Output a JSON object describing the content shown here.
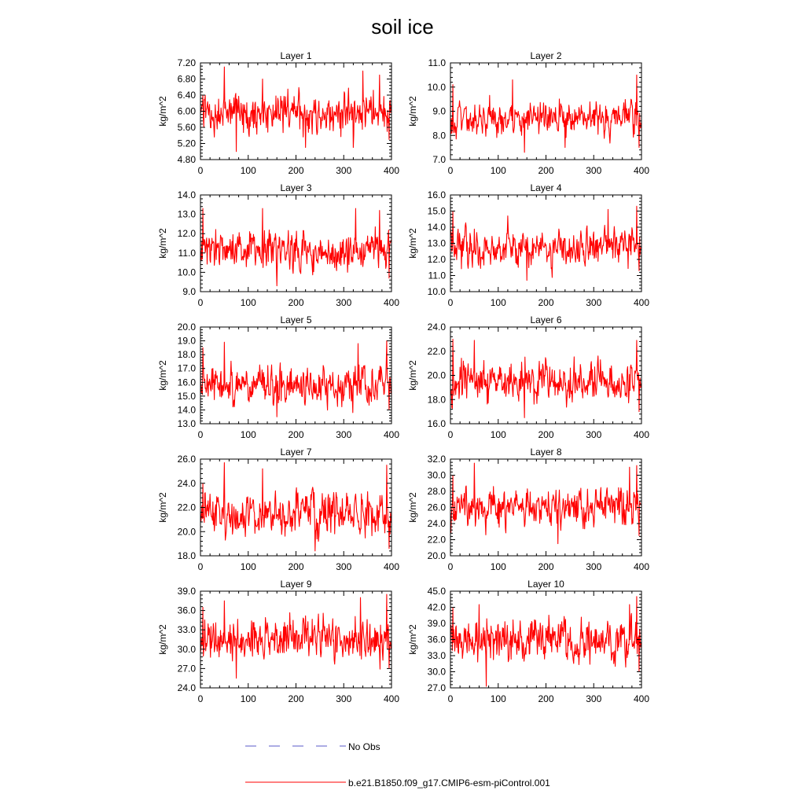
{
  "figure": {
    "title": "soil ice"
  },
  "legend": {
    "obs_label": "No Obs",
    "obs_color": "#5a5ac8",
    "model_label": "b.e21.B1850.f09_g17.CMIP6-esm-piControl.001",
    "model_color": "#ff0000"
  },
  "chart_data": [
    {
      "type": "line",
      "title": "Layer 1",
      "ylabel": "kg/m^2",
      "xlim": [
        0,
        400
      ],
      "ylim": [
        4.8,
        7.2
      ],
      "xticks": [
        "0",
        "100",
        "200",
        "300",
        "400"
      ],
      "yticks": [
        "4.80",
        "5.20",
        "5.60",
        "6.00",
        "6.40",
        "6.80",
        "7.20"
      ],
      "series": [
        {
          "color": "#ff0000",
          "mean": 5.95,
          "amp": 0.35,
          "min": 5.0,
          "max": 7.1,
          "n": 400,
          "x": [
            5,
            50,
            75,
            130,
            220,
            320,
            340,
            375,
            395
          ],
          "y": [
            6.4,
            7.1,
            5.0,
            6.8,
            5.1,
            5.1,
            7.0,
            6.9,
            5.3
          ]
        }
      ]
    },
    {
      "type": "line",
      "title": "Layer 2",
      "ylabel": "kg/m^2",
      "xlim": [
        0,
        400
      ],
      "ylim": [
        7.0,
        11.0
      ],
      "xticks": [
        "0",
        "100",
        "200",
        "300",
        "400"
      ],
      "yticks": [
        "7.0",
        "8.0",
        "9.0",
        "10.0",
        "11.0"
      ],
      "series": [
        {
          "color": "#ff0000",
          "mean": 8.7,
          "amp": 0.5,
          "min": 7.3,
          "max": 10.5,
          "n": 400,
          "x": [
            5,
            130,
            155,
            240,
            390,
            395
          ],
          "y": [
            10.1,
            10.3,
            7.3,
            7.5,
            10.5,
            7.5
          ]
        }
      ]
    },
    {
      "type": "line",
      "title": "Layer 3",
      "ylabel": "kg/m^2",
      "xlim": [
        0,
        400
      ],
      "ylim": [
        9.0,
        14.0
      ],
      "xticks": [
        "0",
        "100",
        "200",
        "300",
        "400"
      ],
      "yticks": [
        "9.0",
        "10.0",
        "11.0",
        "12.0",
        "13.0",
        "14.0"
      ],
      "series": [
        {
          "color": "#ff0000",
          "mean": 11.1,
          "amp": 0.7,
          "min": 9.3,
          "max": 13.3,
          "n": 400,
          "x": [
            5,
            130,
            160,
            325,
            375,
            395
          ],
          "y": [
            13.3,
            13.3,
            9.3,
            13.3,
            13.2,
            9.7
          ]
        }
      ]
    },
    {
      "type": "line",
      "title": "Layer 4",
      "ylabel": "kg/m^2",
      "xlim": [
        0,
        400
      ],
      "ylim": [
        10.0,
        16.0
      ],
      "xticks": [
        "0",
        "100",
        "200",
        "300",
        "400"
      ],
      "yticks": [
        "10.0",
        "11.0",
        "12.0",
        "13.0",
        "14.0",
        "15.0",
        "16.0"
      ],
      "series": [
        {
          "color": "#ff0000",
          "mean": 12.8,
          "amp": 0.8,
          "min": 10.7,
          "max": 15.3,
          "n": 400,
          "x": [
            5,
            120,
            160,
            330,
            390,
            395
          ],
          "y": [
            15.0,
            14.7,
            10.7,
            15.1,
            15.3,
            11.3
          ]
        }
      ]
    },
    {
      "type": "line",
      "title": "Layer 5",
      "ylabel": "kg/m^2",
      "xlim": [
        0,
        400
      ],
      "ylim": [
        13.0,
        20.0
      ],
      "xticks": [
        "0",
        "100",
        "200",
        "300",
        "400"
      ],
      "yticks": [
        "13.0",
        "14.0",
        "15.0",
        "16.0",
        "17.0",
        "18.0",
        "19.0",
        "20.0"
      ],
      "series": [
        {
          "color": "#ff0000",
          "mean": 15.8,
          "amp": 1.0,
          "min": 13.5,
          "max": 19.0,
          "n": 400,
          "x": [
            5,
            50,
            160,
            330,
            390,
            395
          ],
          "y": [
            18.5,
            18.9,
            13.5,
            18.8,
            19.0,
            14.0
          ]
        }
      ]
    },
    {
      "type": "line",
      "title": "Layer 6",
      "ylabel": "kg/m^2",
      "xlim": [
        0,
        400
      ],
      "ylim": [
        16.0,
        24.0
      ],
      "xticks": [
        "0",
        "100",
        "200",
        "300",
        "400"
      ],
      "yticks": [
        "16.0",
        "18.0",
        "20.0",
        "22.0",
        "24.0"
      ],
      "series": [
        {
          "color": "#ff0000",
          "mean": 19.5,
          "amp": 1.2,
          "min": 16.5,
          "max": 23.0,
          "n": 400,
          "x": [
            5,
            50,
            155,
            390,
            395
          ],
          "y": [
            23.0,
            22.9,
            16.5,
            22.9,
            17.0
          ]
        }
      ]
    },
    {
      "type": "line",
      "title": "Layer 7",
      "ylabel": "kg/m^2",
      "xlim": [
        0,
        400
      ],
      "ylim": [
        18.0,
        26.0
      ],
      "xticks": [
        "0",
        "100",
        "200",
        "300",
        "400"
      ],
      "yticks": [
        "18.0",
        "20.0",
        "22.0",
        "24.0",
        "26.0"
      ],
      "series": [
        {
          "color": "#ff0000",
          "mean": 21.5,
          "amp": 1.3,
          "min": 18.4,
          "max": 25.7,
          "n": 400,
          "x": [
            5,
            50,
            130,
            240,
            390,
            395
          ],
          "y": [
            24.0,
            25.7,
            25.2,
            18.4,
            25.5,
            18.6
          ]
        }
      ]
    },
    {
      "type": "line",
      "title": "Layer 8",
      "ylabel": "kg/m^2",
      "xlim": [
        0,
        400
      ],
      "ylim": [
        20.0,
        32.0
      ],
      "xticks": [
        "0",
        "100",
        "200",
        "300",
        "400"
      ],
      "yticks": [
        "20.0",
        "22.0",
        "24.0",
        "26.0",
        "28.0",
        "30.0",
        "32.0"
      ],
      "series": [
        {
          "color": "#ff0000",
          "mean": 26.0,
          "amp": 1.7,
          "min": 21.5,
          "max": 31.5,
          "n": 400,
          "x": [
            5,
            50,
            225,
            375,
            390,
            395
          ],
          "y": [
            30.0,
            31.5,
            21.5,
            31.0,
            31.2,
            22.5
          ]
        }
      ]
    },
    {
      "type": "line",
      "title": "Layer 9",
      "ylabel": "kg/m^2",
      "xlim": [
        0,
        400
      ],
      "ylim": [
        24.0,
        39.0
      ],
      "xticks": [
        "0",
        "100",
        "200",
        "300",
        "400"
      ],
      "yticks": [
        "24.0",
        "27.0",
        "30.0",
        "33.0",
        "36.0",
        "39.0"
      ],
      "series": [
        {
          "color": "#ff0000",
          "mean": 31.5,
          "amp": 2.3,
          "min": 25.5,
          "max": 38.5,
          "n": 400,
          "x": [
            5,
            50,
            75,
            335,
            390,
            395
          ],
          "y": [
            36.5,
            37.5,
            25.5,
            38.0,
            38.5,
            27.0
          ]
        }
      ]
    },
    {
      "type": "line",
      "title": "Layer 10",
      "ylabel": "kg/m^2",
      "xlim": [
        0,
        400
      ],
      "ylim": [
        27.0,
        45.0
      ],
      "xticks": [
        "0",
        "100",
        "200",
        "300",
        "400"
      ],
      "yticks": [
        "27.0",
        "30.0",
        "33.0",
        "36.0",
        "39.0",
        "42.0",
        "45.0"
      ],
      "series": [
        {
          "color": "#ff0000",
          "mean": 35.5,
          "amp": 2.7,
          "min": 27.3,
          "max": 44.0,
          "n": 400,
          "x": [
            5,
            60,
            75,
            375,
            390,
            395
          ],
          "y": [
            42.0,
            42.5,
            27.3,
            42.5,
            44.0,
            30.0
          ]
        }
      ]
    }
  ]
}
